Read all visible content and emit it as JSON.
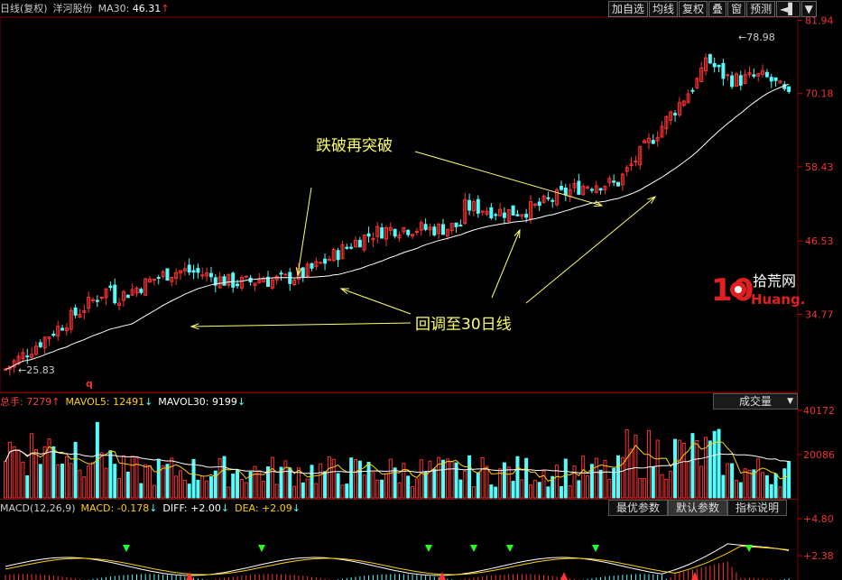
{
  "header": {
    "period": "日线(复权)",
    "stock": "洋河股份",
    "ma_label": "MA30:",
    "ma_value": "46.31",
    "ma_arrow": "↑"
  },
  "toolbar": [
    "加自选",
    "均线",
    "复权",
    "叠",
    "窗",
    "预测",
    "◄▌",
    "▼"
  ],
  "volume_header": {
    "label": "总手:",
    "value": "7279",
    "v_arrow": "↑",
    "mavol5_label": "MAVOL5:",
    "mavol5": "12491",
    "mavol5_arrow": "↓",
    "mavol30_label": "MAVOL30:",
    "mavol30": "9199",
    "mavol30_arrow": "↓",
    "dropdown": "成交量"
  },
  "macd_header": {
    "label": "MACD(12,26,9)",
    "macd_label": "MACD:",
    "macd": "-0.178",
    "macd_arrow": "↓",
    "diff_label": "DIFF:",
    "diff": "+2.00",
    "diff_arrow": "↓",
    "dea_label": "DEA:",
    "dea": "+2.09",
    "dea_arrow": "↓",
    "tabs": [
      "最优参数",
      "默认参数",
      "指标说明"
    ]
  },
  "annotations": {
    "breakout": "跌破再突破",
    "pullback": "回调至30日线",
    "high_label": "78.98",
    "low_label": "25.83",
    "q_marker": "q"
  },
  "logo": {
    "num": "10",
    "cn": "拾荒网",
    "domain": "Huang.CN"
  },
  "colors": {
    "up": "#ff3232",
    "down": "#54fcfc",
    "ma": "#ffffff",
    "annot": "#ffff66"
  },
  "chart_data": [
    {
      "type": "candlestick",
      "y_ticks": [
        "81.94",
        "70.18",
        "58.43",
        "46.53",
        "34.77"
      ],
      "ylim": [
        25.0,
        82.0
      ],
      "price_range": [
        25.83,
        78.98
      ],
      "ma_period": 30
    },
    {
      "type": "bar",
      "y_ticks": [
        "40172",
        "20086"
      ],
      "ylim": [
        0,
        40172
      ]
    },
    {
      "type": "line",
      "y_ticks": [
        "+4.80",
        "+2.38"
      ],
      "series": [
        "DIFF",
        "DEA",
        "MACD"
      ]
    }
  ]
}
